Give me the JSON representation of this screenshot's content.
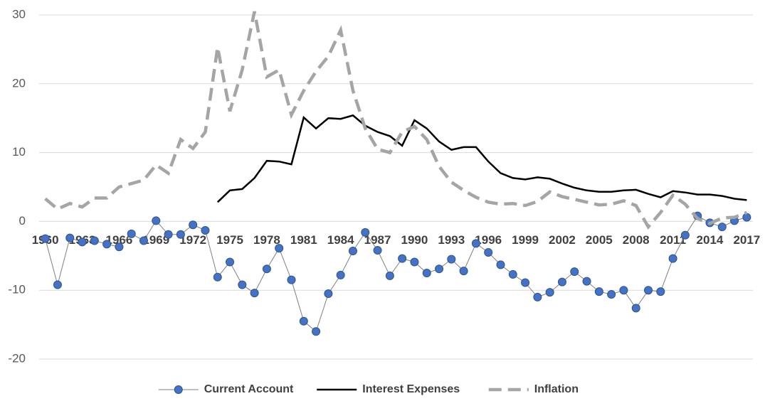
{
  "chart_data": {
    "type": "line",
    "x": [
      1960,
      1961,
      1962,
      1963,
      1964,
      1965,
      1966,
      1967,
      1968,
      1969,
      1970,
      1971,
      1972,
      1973,
      1974,
      1975,
      1976,
      1977,
      1978,
      1979,
      1980,
      1981,
      1982,
      1983,
      1984,
      1985,
      1986,
      1987,
      1988,
      1989,
      1990,
      1991,
      1992,
      1993,
      1994,
      1995,
      1996,
      1997,
      1998,
      1999,
      2000,
      2001,
      2002,
      2003,
      2004,
      2005,
      2006,
      2007,
      2008,
      2009,
      2010,
      2011,
      2012,
      2013,
      2014,
      2015,
      2016,
      2017
    ],
    "xlim": [
      1959.5,
      2017.5
    ],
    "xticks": [
      1960,
      1963,
      1966,
      1969,
      1972,
      1975,
      1978,
      1981,
      1984,
      1987,
      1990,
      1993,
      1996,
      1999,
      2002,
      2005,
      2008,
      2011,
      2014,
      2017
    ],
    "ylim": [
      -20,
      30
    ],
    "yticks": [
      -20,
      -10,
      0,
      10,
      20,
      30
    ],
    "grid": true,
    "legend": "bottom",
    "series": [
      {
        "name": "Current Account",
        "color": "#4472c4",
        "line_color": "#7f7f7f",
        "line_width": 1,
        "marker": "circle",
        "values": [
          -2.5,
          -9.2,
          -2.4,
          -3.0,
          -2.8,
          -3.3,
          -3.7,
          -1.8,
          -2.8,
          0.1,
          -1.9,
          -1.9,
          -0.5,
          -1.3,
          -8.1,
          -5.9,
          -9.2,
          -10.4,
          -6.9,
          -3.9,
          -8.5,
          -14.5,
          -16.0,
          -10.5,
          -7.8,
          -4.3,
          -1.6,
          -4.2,
          -7.9,
          -5.4,
          -5.9,
          -7.5,
          -6.9,
          -5.5,
          -7.2,
          -3.2,
          -4.5,
          -6.3,
          -7.7,
          -8.9,
          -11.0,
          -10.3,
          -8.8,
          -7.3,
          -8.7,
          -10.2,
          -10.6,
          -10.0,
          -12.6,
          -10.0,
          -10.2,
          -5.4,
          -2.0,
          0.8,
          -0.2,
          -0.8,
          0.1,
          0.6
        ]
      },
      {
        "name": "Interest Expenses",
        "color": "#000000",
        "line_width": 2.5,
        "values": [
          null,
          null,
          null,
          null,
          null,
          null,
          null,
          null,
          null,
          null,
          null,
          null,
          null,
          null,
          2.8,
          4.5,
          4.7,
          6.3,
          8.8,
          8.7,
          8.3,
          15.1,
          13.5,
          15.0,
          14.9,
          15.4,
          13.9,
          13.0,
          12.4,
          11.0,
          14.7,
          13.5,
          11.6,
          10.4,
          10.8,
          10.8,
          8.7,
          7.0,
          6.3,
          6.1,
          6.4,
          6.2,
          5.5,
          4.9,
          4.5,
          4.3,
          4.3,
          4.5,
          4.6,
          4.0,
          3.5,
          4.4,
          4.2,
          3.9,
          3.9,
          3.7,
          3.3,
          3.1
        ]
      },
      {
        "name": "Inflation",
        "color": "#a5a5a5",
        "line_width": 4.5,
        "dash": true,
        "values": [
          3.3,
          1.8,
          2.6,
          2.1,
          3.4,
          3.4,
          5.0,
          5.5,
          6.0,
          8.2,
          7.0,
          11.9,
          10.6,
          13.0,
          25.3,
          16.0,
          22.0,
          30.5,
          21.0,
          22.0,
          15.5,
          19.0,
          21.8,
          24.0,
          27.8,
          19.0,
          13.5,
          10.5,
          10.0,
          13.0,
          13.8,
          11.9,
          8.0,
          5.7,
          4.5,
          3.5,
          2.8,
          2.5,
          2.6,
          2.3,
          2.9,
          4.3,
          3.6,
          3.2,
          2.8,
          2.4,
          2.5,
          3.0,
          2.3,
          -0.8,
          1.3,
          3.8,
          2.5,
          0.4,
          -0.3,
          0.5,
          0.6,
          1.3
        ]
      }
    ]
  }
}
